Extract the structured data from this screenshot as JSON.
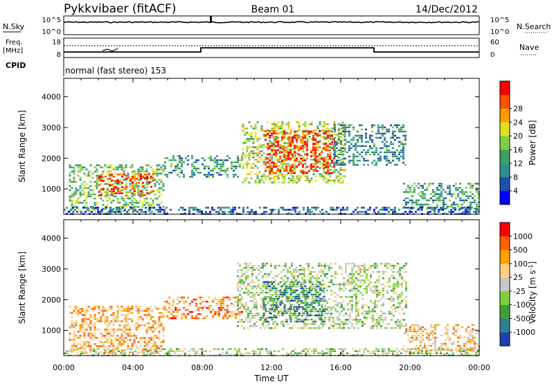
{
  "header": {
    "station": "Pykkvibaer (fitACF)",
    "beam": "Beam 01",
    "date": "14/Dec/2012"
  },
  "top_panels": {
    "nsky_label": "N.Sky",
    "nsky_top": "10^5",
    "nsky_bottom": "10^0",
    "nsearch_label": "N.Search",
    "nsearch_top": "10^5",
    "nsearch_bottom": "10^0",
    "freq_label": "Freq.",
    "freq_unit": "[MHz]",
    "freq_ticks": [
      "18",
      "8"
    ],
    "nave_label": "Nave",
    "nave_ticks": [
      "60",
      "0"
    ],
    "cpid_label": "CPID",
    "cpid_text": "normal (fast stereo) 153"
  },
  "chart_data": [
    {
      "type": "heatmap",
      "title": "",
      "xlabel": "",
      "ylabel": "Slant Range [km]",
      "x": [
        "00:00",
        "04:00",
        "08:00",
        "12:00",
        "16:00",
        "20:00",
        "00:00"
      ],
      "y_ticks": [
        1000,
        2000,
        3000,
        4000
      ],
      "ylim": [
        180,
        4600
      ],
      "colorbar": {
        "label": "Power [dB]",
        "ticks": [
          "4",
          "8",
          "12",
          "16",
          "20",
          "24",
          "28"
        ],
        "colors": [
          "#0000ff",
          "#1f4fa8",
          "#2f8f8f",
          "#3f9f5f",
          "#7fcf3f",
          "#e0e020",
          "#ffa000",
          "#ff5000",
          "#ff0000"
        ]
      },
      "regions": [
        {
          "t0": 0.3,
          "t1": 5.8,
          "r0": 300,
          "r1": 1800,
          "level": 0.45
        },
        {
          "t0": 2.0,
          "t1": 5.2,
          "r0": 800,
          "r1": 1500,
          "level": 0.85
        },
        {
          "t0": 5.8,
          "t1": 10.3,
          "r0": 1400,
          "r1": 2100,
          "level": 0.35
        },
        {
          "t0": 10.3,
          "t1": 16.2,
          "r0": 1200,
          "r1": 3200,
          "level": 0.55
        },
        {
          "t0": 11.6,
          "t1": 15.6,
          "r0": 1500,
          "r1": 2900,
          "level": 0.9
        },
        {
          "t0": 15.6,
          "t1": 19.8,
          "r0": 1800,
          "r1": 3100,
          "level": 0.3
        },
        {
          "t0": 19.6,
          "t1": 24.0,
          "r0": 350,
          "r1": 1200,
          "level": 0.35
        },
        {
          "t0": 0.0,
          "t1": 24.0,
          "r0": 180,
          "r1": 420,
          "level": 0.2
        }
      ]
    },
    {
      "type": "heatmap",
      "title": "",
      "xlabel": "Time UT",
      "ylabel": "Slant Range [km]",
      "x": [
        "00:00",
        "04:00",
        "08:00",
        "12:00",
        "16:00",
        "20:00",
        "00:00"
      ],
      "y_ticks": [
        1000,
        2000,
        3000,
        4000
      ],
      "ylim": [
        180,
        4600
      ],
      "colorbar": {
        "label": "Velocity [m s^-1]",
        "ticks": [
          "1000",
          "500",
          "100",
          "25",
          "-25",
          "-100",
          "-500",
          "-1000"
        ],
        "colors": [
          "#2040b0",
          "#2f7f8f",
          "#3f9f3f",
          "#7fcf3f",
          "#c8c8c8",
          "#ffd080",
          "#ffa000",
          "#ff6000",
          "#ff0000"
        ]
      },
      "regions": [
        {
          "t0": 0.3,
          "t1": 5.8,
          "r0": 300,
          "r1": 1800,
          "level": 0.7
        },
        {
          "t0": 5.8,
          "t1": 10.3,
          "r0": 1400,
          "r1": 2100,
          "level": 0.75
        },
        {
          "t0": 10.0,
          "t1": 19.8,
          "r0": 1100,
          "r1": 3200,
          "level": 0.45
        },
        {
          "t0": 11.5,
          "t1": 15.0,
          "r0": 1300,
          "r1": 2600,
          "level": 0.2
        },
        {
          "t0": 19.6,
          "t1": 24.0,
          "r0": 300,
          "r1": 1200,
          "level": 0.65
        },
        {
          "t0": 0.0,
          "t1": 24.0,
          "r0": 180,
          "r1": 420,
          "level": 0.45
        }
      ]
    }
  ]
}
